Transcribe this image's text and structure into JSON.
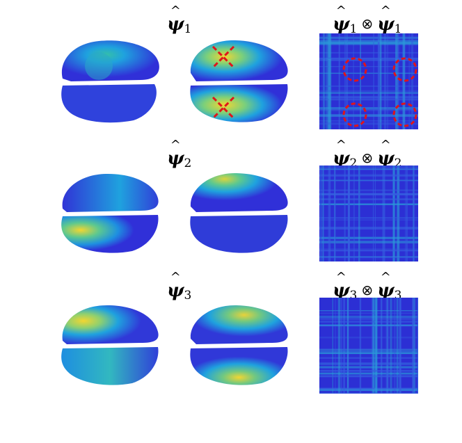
{
  "rows": [
    {
      "symbol": "ψ",
      "index": "1",
      "operator": "⊗",
      "marked": true
    },
    {
      "symbol": "ψ",
      "index": "2",
      "operator": "⊗",
      "marked": false
    },
    {
      "symbol": "ψ",
      "index": "3",
      "operator": "⊗",
      "marked": false
    }
  ],
  "colors": {
    "low": "#2b2bd6",
    "mid": "#1ea0d8",
    "midhigh": "#3cc4b0",
    "high": "#f2d631",
    "marker": "#e0141a"
  }
}
